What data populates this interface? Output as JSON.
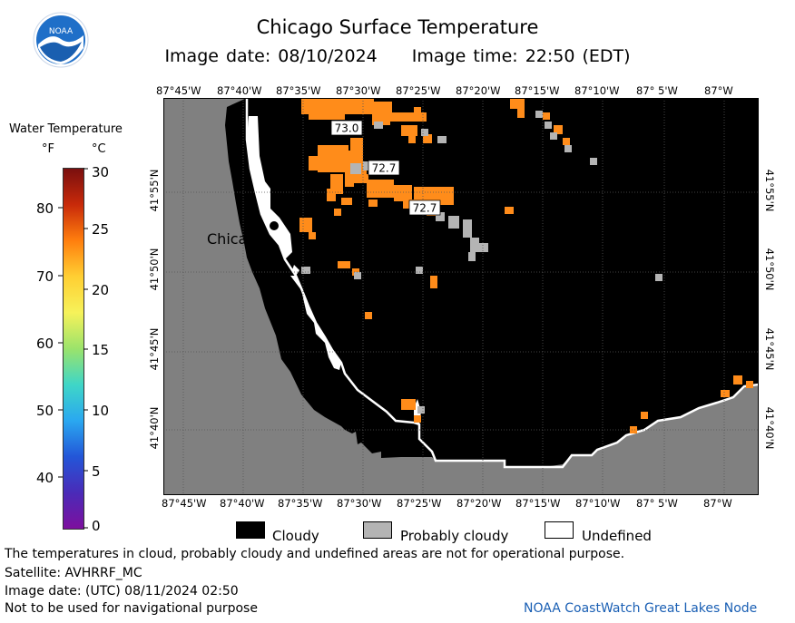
{
  "header": {
    "title": "Chicago Surface Temperature",
    "image_date": "Image date: 08/10/2024",
    "image_time": "Image time: 22:50 (EDT)"
  },
  "logo": {
    "text": "NOAA",
    "icon": "noaa-logo-icon",
    "colors": {
      "ring": "#ffffff",
      "sky": "#1f6fc8",
      "gull": "#ffffff"
    }
  },
  "map": {
    "lon_ticks": [
      "87°45'W",
      "87°40'W",
      "87°35'W",
      "87°30'W",
      "87°25'W",
      "87°20'W",
      "87°15'W",
      "87°10'W",
      "87° 5'W",
      "87°W"
    ],
    "lat_ticks": [
      "41°55'N",
      "41°50'N",
      "41°45'N",
      "41°40'N"
    ],
    "city_label": "Chicago",
    "temperature_labels": [
      "73.0",
      "72.7",
      "72.7"
    ],
    "colors": {
      "land": "#808080",
      "cloud": "#000000",
      "probably_cloudy": "#b4b4b4",
      "undefined": "#ffffff",
      "water_warm": "#ff8c1a",
      "grid": "#555555"
    }
  },
  "colorbar": {
    "title": "Water Temperature",
    "unit_f": "°F",
    "unit_c": "°C",
    "f_labels": [
      "80",
      "70",
      "60",
      "50",
      "40"
    ],
    "c_labels": [
      "30",
      "25",
      "20",
      "15",
      "10",
      "5",
      "0"
    ],
    "gradient_colors": [
      "#7a0f0f",
      "#c82a0a",
      "#ff7f0e",
      "#ffcf33",
      "#f6f25a",
      "#9be36b",
      "#3fd6c7",
      "#2aa8f0",
      "#2356d8",
      "#4a2bb8",
      "#7d0f9e"
    ]
  },
  "legend": {
    "items": [
      {
        "label": "Cloudy",
        "color": "#000000"
      },
      {
        "label": "Probably cloudy",
        "color": "#b4b4b4"
      },
      {
        "label": "Undefined",
        "color": "#ffffff"
      }
    ]
  },
  "footer": {
    "disclaimer": "The temperatures in cloud, probably cloudy and undefined areas are not for operational purpose.",
    "satellite": "Satellite: AVHRRF_MC",
    "utc_date": "Image date: (UTC) 08/11/2024  02:50",
    "navigation": "Not to be used for navigational purpose",
    "credit": "NOAA CoastWatch Great Lakes Node"
  }
}
